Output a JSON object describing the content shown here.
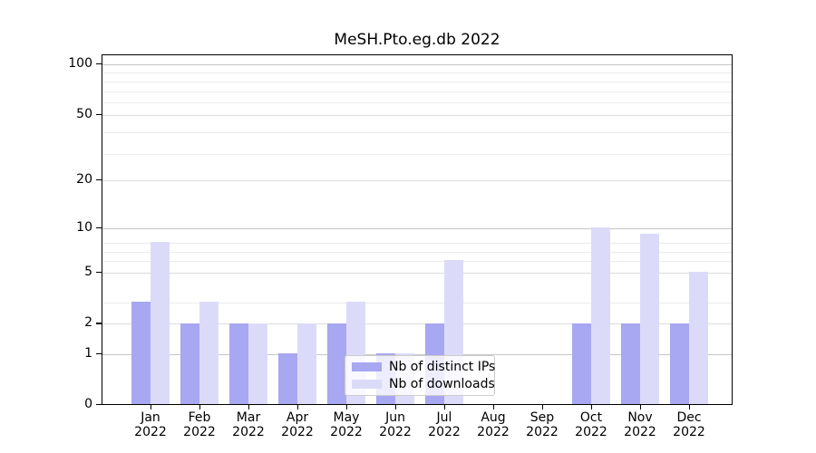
{
  "figure": {
    "background": "#ffffff"
  },
  "chart_data": {
    "type": "bar",
    "title": "MeSH.Pto.eg.db 2022",
    "categories": [
      "Jan 2022",
      "Feb 2022",
      "Mar 2022",
      "Apr 2022",
      "May 2022",
      "Jun 2022",
      "Jul 2022",
      "Aug 2022",
      "Sep 2022",
      "Oct 2022",
      "Nov 2022",
      "Dec 2022"
    ],
    "series": [
      {
        "name": "Nb of distinct IPs",
        "color": "#a7a7f2",
        "values": [
          3,
          2,
          2,
          1,
          2,
          1,
          2,
          0,
          0,
          2,
          2,
          2
        ]
      },
      {
        "name": "Nb of downloads",
        "color": "#dbdbf9",
        "values": [
          8,
          3,
          2,
          2,
          3,
          1,
          6,
          0,
          0,
          10,
          9,
          5
        ]
      }
    ],
    "xlabel": "",
    "ylabel": "",
    "yscale": "log10(1+y)",
    "yticks": [
      0,
      1,
      2,
      5,
      10,
      20,
      50,
      100
    ],
    "ylim": [
      0,
      114
    ],
    "grid": true,
    "legend": {
      "position": "inside-bottom-center",
      "entries": [
        "Nb of distinct IPs",
        "Nb of downloads"
      ]
    }
  },
  "colors": {
    "axis": "#000000",
    "text": "#000000",
    "grid_minor": "#ececec",
    "grid_labeled": "#dddddd",
    "grid_decade": "#c6c6c6",
    "legend_border": "#cccccc"
  }
}
